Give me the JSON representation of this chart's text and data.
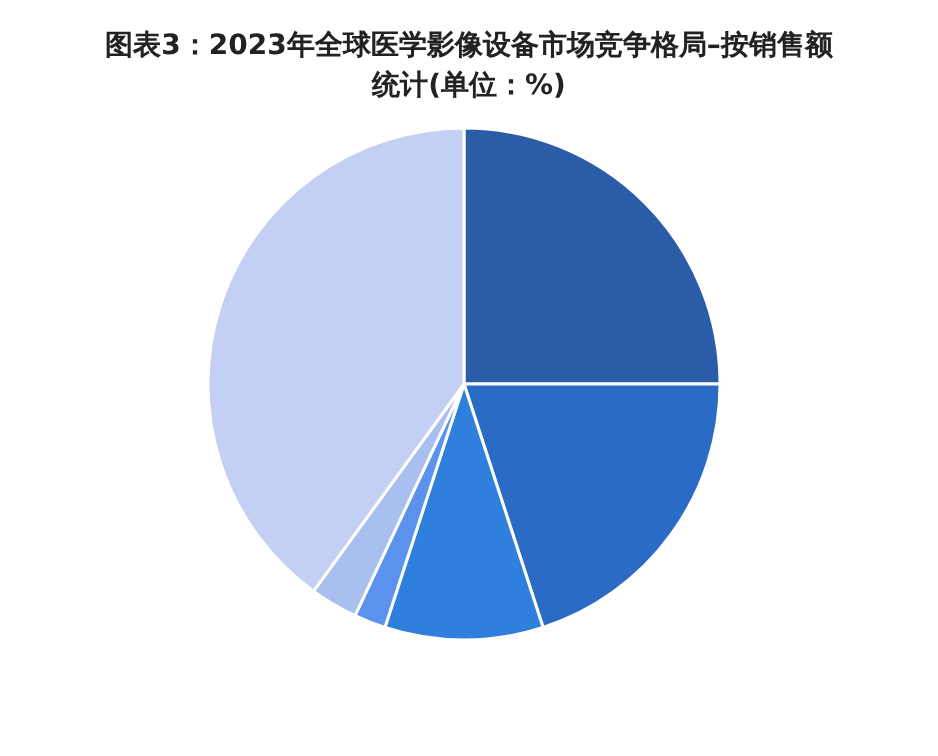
{
  "chart_data": {
    "type": "pie",
    "title": "图表3：2023年全球医学影像设备市场竞争格局–按销售额统计(单位：%)",
    "categories": [
      null,
      null,
      null,
      null,
      null,
      null
    ],
    "values": [
      25,
      20,
      10,
      2,
      3,
      40
    ],
    "colors": [
      "#2a5ca8",
      "#2a6bc6",
      "#2f7fdc",
      "#5a92ee",
      "#a9bff0",
      "#c3d0f4"
    ]
  }
}
